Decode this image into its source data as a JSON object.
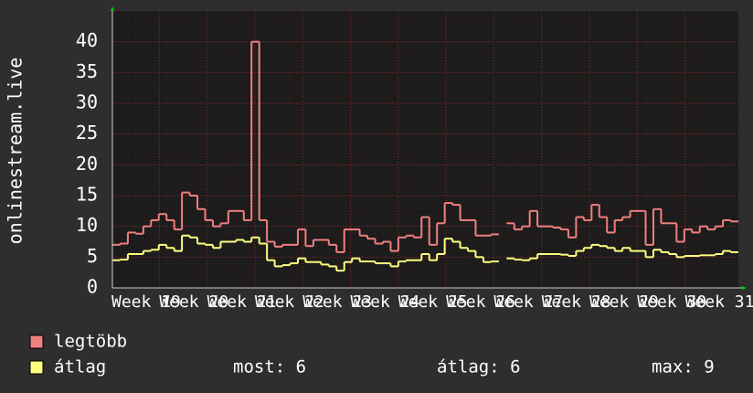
{
  "chart_data": {
    "type": "step",
    "y_label": "onlinestream.live",
    "xlabels": [
      "Week 19",
      "Week 20",
      "Week 21",
      "Week 22",
      "Week 23",
      "Week 24",
      "Week 25",
      "Week 26",
      "Week 27",
      "Week 28",
      "Week 29",
      "Week 30",
      "Week 31"
    ],
    "series": [
      {
        "name": "legtöbb",
        "color": "#f08080",
        "values": [
          7,
          7.2,
          9,
          8.8,
          10,
          11,
          12,
          11,
          9.5,
          15.5,
          15,
          12.8,
          11,
          10,
          10.5,
          12.5,
          12.5,
          11,
          40,
          11,
          7.5,
          6.7,
          7,
          7,
          9.5,
          6.8,
          7.8,
          7.8,
          7,
          5.8,
          9.5,
          9.5,
          8.5,
          8,
          7.2,
          7.5,
          6,
          8.2,
          8.5,
          8.2,
          11.5,
          7,
          10.5,
          13.8,
          13.5,
          11,
          11,
          8.5,
          8.5,
          8.7,
          null,
          10.5,
          9.5,
          10,
          12.5,
          10,
          10,
          9.8,
          9.5,
          8.2,
          11.5,
          11,
          13.5,
          11.5,
          9,
          11,
          11.5,
          12.5,
          12.5,
          7,
          12.8,
          10.5,
          10.5,
          7.5,
          9.5,
          9,
          10,
          9.5,
          10,
          11,
          10.8
        ]
      },
      {
        "name": "átlag",
        "color": "#ffff80",
        "values": [
          4.5,
          4.6,
          5.5,
          5.5,
          6,
          6.2,
          7,
          6.5,
          6,
          8.5,
          8.2,
          7.2,
          7,
          6.5,
          7.5,
          7.5,
          7.8,
          7.5,
          8.2,
          7.2,
          4.5,
          3.5,
          3.7,
          4,
          4.8,
          4.2,
          4.2,
          3.8,
          3.5,
          2.8,
          4.2,
          4.8,
          4.3,
          4.3,
          4,
          4,
          3.5,
          4.3,
          4.5,
          4.5,
          5.5,
          4.5,
          5.5,
          8,
          7.5,
          6.5,
          6,
          5,
          4.2,
          4.3,
          null,
          4.8,
          4.6,
          4.5,
          4.8,
          5.5,
          5.5,
          5.5,
          5.4,
          5.2,
          6,
          6.5,
          7,
          6.8,
          6.5,
          6,
          6.5,
          6,
          6,
          5,
          6.2,
          5.8,
          5.5,
          5,
          5.2,
          5.2,
          5.3,
          5.3,
          5.5,
          6,
          5.8
        ]
      }
    ],
    "stats": [
      "most: 6",
      "átlag: 6",
      "max: 9"
    ],
    "ylim": [
      0,
      45
    ],
    "yticks": [
      0,
      5,
      10,
      15,
      20,
      25,
      30,
      35,
      40
    ],
    "grid": true
  }
}
